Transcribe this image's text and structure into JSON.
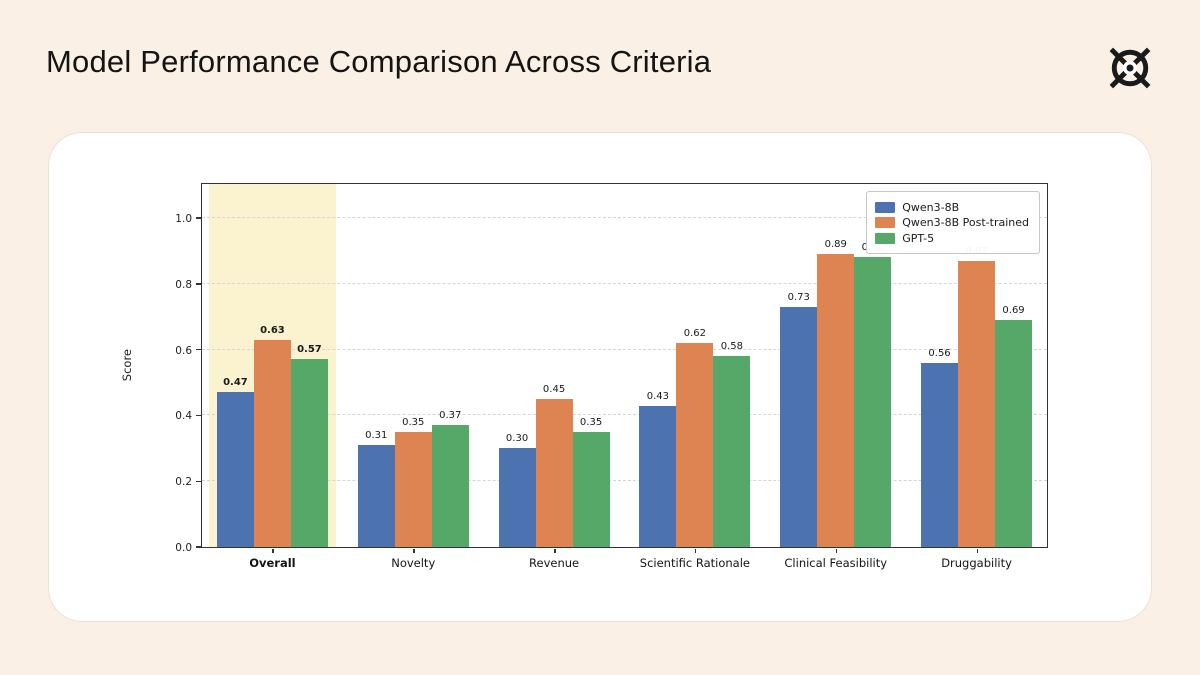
{
  "page": {
    "title": "Model Performance Comparison Across Criteria"
  },
  "colors": {
    "page_background": "#faf0e5",
    "card_background": "#ffffff",
    "card_border": "#ece0d2",
    "spine": "#333333",
    "gridline": "#d6d6d6",
    "highlight_band": "#fbf3d0",
    "title_text": "#141414"
  },
  "chart_data": {
    "type": "bar",
    "title": "",
    "xlabel": "",
    "ylabel": "Score",
    "ylim": [
      0.0,
      1.1
    ],
    "yticks": [
      0.0,
      0.2,
      0.4,
      0.6,
      0.8,
      1.0
    ],
    "grid": "horizontal-dashed",
    "legend_position": "upper-right",
    "highlighted_category": "Overall",
    "categories": [
      "Overall",
      "Novelty",
      "Revenue",
      "Scientific Rationale",
      "Clinical Feasibility",
      "Druggability"
    ],
    "series": [
      {
        "name": "Qwen3-8B",
        "color": "#4c72b0",
        "values": [
          0.47,
          0.31,
          0.3,
          0.43,
          0.73,
          0.56
        ]
      },
      {
        "name": "Qwen3-8B Post-trained",
        "color": "#dd8452",
        "values": [
          0.63,
          0.35,
          0.45,
          0.62,
          0.89,
          0.87
        ]
      },
      {
        "name": "GPT-5",
        "color": "#55a868",
        "values": [
          0.57,
          0.37,
          0.35,
          0.58,
          0.88,
          0.69
        ]
      }
    ]
  }
}
